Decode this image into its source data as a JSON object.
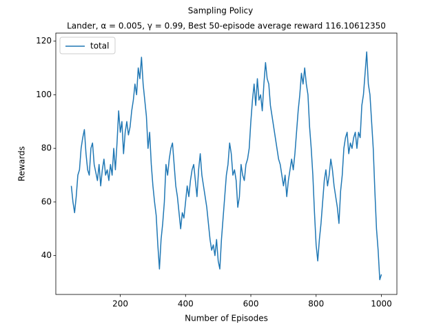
{
  "chart_data": {
    "type": "line",
    "suptitle": "Sampling Policy",
    "title": "Lander, α = 0.005, γ = 0.99, Best 50-episode average reward 116.10612350",
    "x_label": "Number of Episodes",
    "y_label": "Rewards",
    "xlim": [
      2.5,
      1047.5
    ],
    "ylim": [
      25.5,
      123
    ],
    "xticks": [
      200,
      400,
      600,
      800,
      1000
    ],
    "yticks": [
      40,
      60,
      80,
      100,
      120
    ],
    "legend": "upper left",
    "x": [
      50,
      55,
      60,
      65,
      70,
      75,
      80,
      85,
      90,
      95,
      100,
      105,
      110,
      115,
      120,
      125,
      130,
      135,
      140,
      145,
      150,
      155,
      160,
      165,
      170,
      175,
      180,
      185,
      190,
      195,
      200,
      205,
      210,
      215,
      220,
      225,
      230,
      235,
      240,
      245,
      250,
      255,
      260,
      265,
      270,
      275,
      280,
      285,
      290,
      295,
      300,
      305,
      310,
      315,
      320,
      325,
      330,
      335,
      340,
      345,
      350,
      355,
      360,
      365,
      370,
      375,
      380,
      385,
      390,
      395,
      400,
      405,
      410,
      415,
      420,
      425,
      430,
      435,
      440,
      445,
      450,
      455,
      460,
      465,
      470,
      475,
      480,
      485,
      490,
      495,
      500,
      505,
      510,
      515,
      520,
      525,
      530,
      535,
      540,
      545,
      550,
      555,
      560,
      565,
      570,
      575,
      580,
      585,
      590,
      595,
      600,
      605,
      610,
      615,
      620,
      625,
      630,
      635,
      640,
      645,
      650,
      655,
      660,
      665,
      670,
      675,
      680,
      685,
      690,
      695,
      700,
      705,
      710,
      715,
      720,
      725,
      730,
      735,
      740,
      745,
      750,
      755,
      760,
      765,
      770,
      775,
      780,
      785,
      790,
      795,
      800,
      805,
      810,
      815,
      820,
      825,
      830,
      835,
      840,
      845,
      850,
      855,
      860,
      865,
      870,
      875,
      880,
      885,
      890,
      895,
      900,
      905,
      910,
      915,
      920,
      925,
      930,
      935,
      940,
      945,
      950,
      955,
      960,
      965,
      970,
      975,
      980,
      985,
      990,
      995,
      1000
    ],
    "series": [
      {
        "name": "total",
        "color": "#1f77b4",
        "values": [
          66,
          60,
          56,
          62,
          70,
          72,
          80,
          84,
          87,
          78,
          72,
          70,
          80,
          82,
          74,
          71,
          68,
          74,
          66,
          72,
          76,
          70,
          72,
          68,
          74,
          70,
          80,
          72,
          82,
          94,
          86,
          90,
          78,
          86,
          90,
          85,
          88,
          94,
          98,
          104,
          100,
          110,
          106,
          114,
          104,
          98,
          92,
          80,
          86,
          74,
          66,
          60,
          55,
          44,
          35,
          46,
          52,
          60,
          74,
          70,
          76,
          80,
          82,
          74,
          66,
          62,
          56,
          50,
          56,
          54,
          60,
          66,
          62,
          68,
          72,
          74,
          68,
          62,
          72,
          78,
          70,
          66,
          62,
          58,
          52,
          46,
          42,
          44,
          40,
          46,
          38,
          35,
          46,
          54,
          62,
          70,
          74,
          82,
          78,
          70,
          72,
          68,
          58,
          62,
          74,
          70,
          68,
          74,
          76,
          80,
          90,
          98,
          104,
          96,
          106,
          98,
          100,
          94,
          104,
          112,
          106,
          104,
          96,
          92,
          88,
          84,
          80,
          76,
          74,
          70,
          66,
          70,
          62,
          68,
          72,
          76,
          72,
          78,
          86,
          94,
          100,
          108,
          104,
          110,
          104,
          100,
          88,
          80,
          70,
          56,
          44,
          38,
          46,
          52,
          60,
          68,
          72,
          66,
          70,
          76,
          72,
          66,
          62,
          58,
          52,
          64,
          70,
          80,
          84,
          86,
          78,
          82,
          80,
          84,
          86,
          80,
          86,
          84,
          96,
          100,
          108,
          116,
          104,
          100,
          90,
          80,
          64,
          50,
          42,
          31,
          33
        ]
      }
    ]
  }
}
